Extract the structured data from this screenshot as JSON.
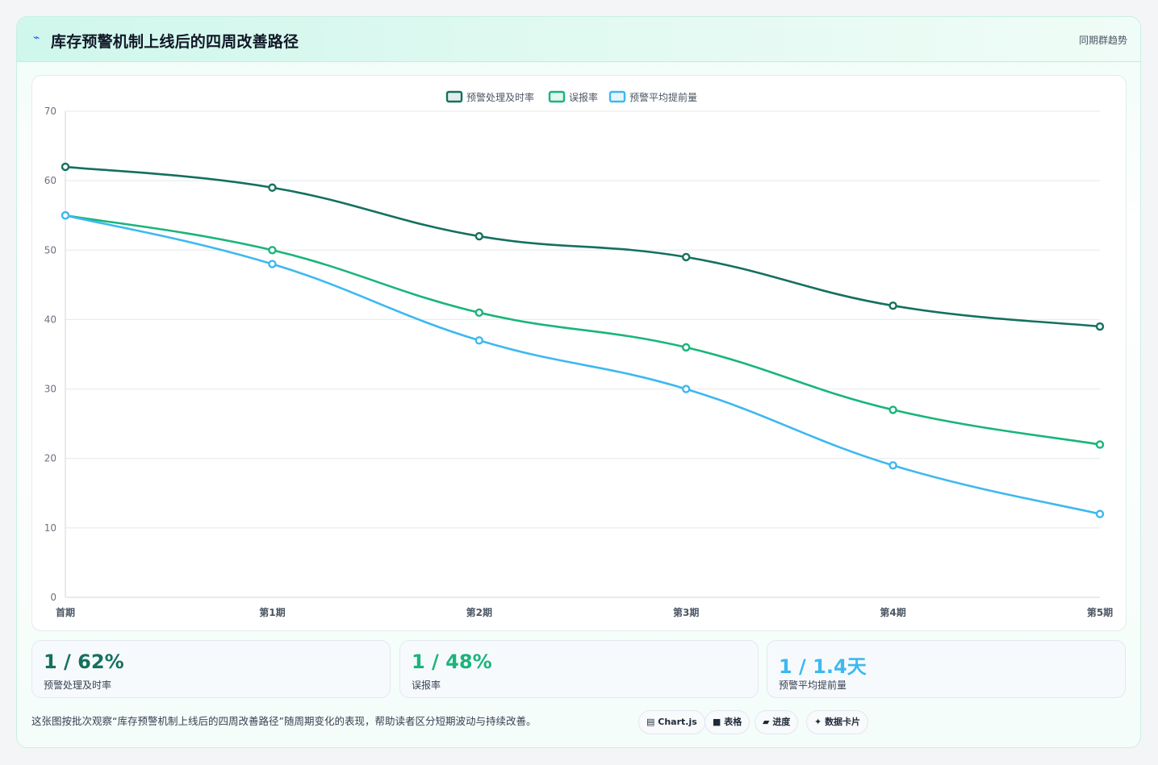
{
  "header": {
    "icon": "lightning-icon",
    "title": "库存预警机制上线后的四周改善路径",
    "tag": "同期群趋势"
  },
  "chart_data": {
    "type": "line",
    "categories": [
      "首期",
      "第1期",
      "第2期",
      "第3期",
      "第4期",
      "第5期"
    ],
    "series": [
      {
        "name": "预警处理及时率",
        "values": [
          62,
          59,
          52,
          49,
          42,
          39
        ],
        "color": "#14705f"
      },
      {
        "name": "误报率",
        "values": [
          55,
          50,
          41,
          36,
          27,
          22
        ],
        "color": "#19b57a"
      },
      {
        "name": "预警平均提前量",
        "values": [
          55,
          48,
          37,
          30,
          19,
          12
        ],
        "color": "#3db8f0"
      }
    ],
    "ylim": [
      0,
      70
    ],
    "yticks": [
      0,
      10,
      20,
      30,
      40,
      50,
      60,
      70
    ],
    "grid": true,
    "legend": "top-center"
  },
  "kpis": [
    {
      "value": "1 / 62%",
      "label": "预警处理及时率",
      "color": "#14705f"
    },
    {
      "value": "1 / 48%",
      "label": "误报率",
      "color": "#19b57a"
    },
    {
      "value": "1 / 1.4天",
      "label": "预警平均提前量",
      "color": "#3db8f0"
    }
  ],
  "footer": {
    "note": "这张图按批次观察“库存预警机制上线后的四周改善路径”随周期变化的表现，帮助读者区分短期波动与持续改善。",
    "pills": [
      {
        "icon": "chart-icon",
        "glyph": "▤",
        "label": "Chart.js"
      },
      {
        "icon": "table-icon",
        "glyph": "■",
        "label": "表格"
      },
      {
        "icon": "progress-icon",
        "glyph": "▰",
        "label": "进度"
      },
      {
        "icon": "sparkle-icon",
        "glyph": "✦",
        "label": "数据卡片"
      }
    ]
  }
}
